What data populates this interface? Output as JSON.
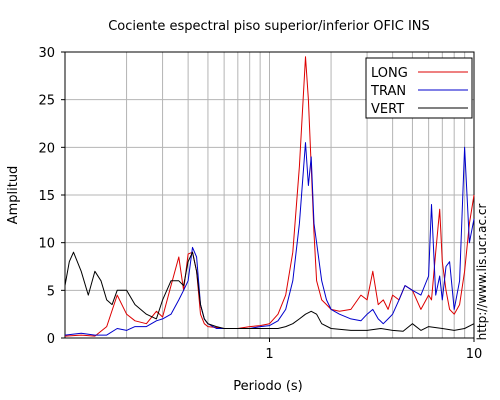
{
  "chart_data": {
    "type": "line",
    "title": "Cociente espectral piso superior/inferior  OFIC INS",
    "xlabel": "Periodo (s)",
    "ylabel": "Amplitud",
    "xscale": "log",
    "xlim": [
      0.1,
      10
    ],
    "ylim": [
      0,
      30
    ],
    "x_ticks": [
      1,
      10
    ],
    "x_tick_labels": [
      "1",
      "10"
    ],
    "y_ticks": [
      0,
      5,
      10,
      15,
      20,
      25,
      30
    ],
    "y_tick_labels": [
      "0",
      "5",
      "10",
      "15",
      "20",
      "25",
      "30"
    ],
    "grid": true,
    "legend_position": "top-right",
    "annotation": "http://www.lis.ucr.ac.cr",
    "series": [
      {
        "name": "LONG",
        "color": "#dd0000",
        "x": [
          0.1,
          0.12,
          0.14,
          0.16,
          0.18,
          0.2,
          0.22,
          0.25,
          0.28,
          0.3,
          0.33,
          0.36,
          0.38,
          0.4,
          0.42,
          0.44,
          0.46,
          0.48,
          0.5,
          0.55,
          0.6,
          0.7,
          0.8,
          0.9,
          1.0,
          1.1,
          1.2,
          1.3,
          1.4,
          1.5,
          1.55,
          1.6,
          1.65,
          1.7,
          1.8,
          1.9,
          2.0,
          2.2,
          2.5,
          2.8,
          3.0,
          3.2,
          3.4,
          3.6,
          3.8,
          4.0,
          4.3,
          4.6,
          5.0,
          5.5,
          6.0,
          6.2,
          6.5,
          6.8,
          7.0,
          7.3,
          7.6,
          8.0,
          8.5,
          9.0,
          9.5,
          10.0
        ],
        "values": [
          0.2,
          0.3,
          0.2,
          1.2,
          4.5,
          2.5,
          1.8,
          1.5,
          2.8,
          2.2,
          5.5,
          8.5,
          5.0,
          8.8,
          9.0,
          7.0,
          2.5,
          1.5,
          1.2,
          1.1,
          1.0,
          1.0,
          1.2,
          1.3,
          1.5,
          2.5,
          4.5,
          9.0,
          18.0,
          29.5,
          25.0,
          18.0,
          11.0,
          6.0,
          4.0,
          3.5,
          3.0,
          2.8,
          3.0,
          4.5,
          4.0,
          7.0,
          3.5,
          4.0,
          3.0,
          4.5,
          4.0,
          5.5,
          5.0,
          3.0,
          4.5,
          4.0,
          9.0,
          13.5,
          8.0,
          5.0,
          3.0,
          2.5,
          3.5,
          7.0,
          12.0,
          15.0
        ]
      },
      {
        "name": "TRAN",
        "color": "#0000cc",
        "x": [
          0.1,
          0.12,
          0.14,
          0.16,
          0.18,
          0.2,
          0.22,
          0.25,
          0.28,
          0.3,
          0.33,
          0.36,
          0.38,
          0.4,
          0.42,
          0.44,
          0.46,
          0.48,
          0.5,
          0.55,
          0.6,
          0.7,
          0.8,
          0.9,
          1.0,
          1.1,
          1.2,
          1.3,
          1.4,
          1.5,
          1.55,
          1.6,
          1.65,
          1.7,
          1.8,
          1.9,
          2.0,
          2.2,
          2.5,
          2.8,
          3.0,
          3.2,
          3.4,
          3.6,
          3.8,
          4.0,
          4.3,
          4.6,
          5.0,
          5.5,
          6.0,
          6.2,
          6.5,
          6.8,
          7.0,
          7.3,
          7.6,
          8.0,
          8.5,
          9.0,
          9.5,
          10.0
        ],
        "values": [
          0.3,
          0.5,
          0.3,
          0.3,
          1.0,
          0.8,
          1.2,
          1.2,
          1.8,
          2.0,
          2.5,
          4.0,
          5.0,
          6.0,
          9.5,
          8.5,
          3.5,
          2.0,
          1.5,
          1.0,
          1.0,
          1.0,
          1.0,
          1.2,
          1.3,
          1.8,
          3.0,
          6.0,
          12.0,
          20.5,
          16.0,
          19.0,
          12.0,
          10.0,
          6.0,
          4.0,
          3.0,
          2.5,
          2.0,
          1.8,
          2.5,
          3.0,
          2.0,
          1.5,
          2.0,
          2.5,
          4.0,
          5.5,
          5.0,
          4.5,
          6.5,
          14.0,
          4.5,
          6.5,
          4.0,
          7.5,
          8.0,
          3.0,
          6.0,
          20.0,
          10.0,
          12.5
        ]
      },
      {
        "name": "VERT",
        "color": "#000000",
        "x": [
          0.1,
          0.105,
          0.11,
          0.12,
          0.13,
          0.14,
          0.15,
          0.16,
          0.17,
          0.18,
          0.2,
          0.22,
          0.25,
          0.28,
          0.3,
          0.33,
          0.36,
          0.38,
          0.4,
          0.42,
          0.44,
          0.46,
          0.48,
          0.5,
          0.55,
          0.6,
          0.7,
          0.8,
          0.9,
          1.0,
          1.1,
          1.2,
          1.3,
          1.4,
          1.5,
          1.6,
          1.7,
          1.8,
          2.0,
          2.5,
          3.0,
          3.5,
          4.0,
          4.5,
          5.0,
          5.5,
          6.0,
          7.0,
          8.0,
          9.0,
          10.0
        ],
        "values": [
          5.5,
          8.0,
          9.0,
          7.0,
          4.5,
          7.0,
          6.0,
          4.0,
          3.5,
          5.0,
          5.0,
          3.5,
          2.5,
          2.0,
          4.0,
          6.0,
          6.0,
          5.5,
          8.0,
          9.0,
          7.0,
          3.5,
          2.0,
          1.5,
          1.2,
          1.0,
          1.0,
          1.0,
          1.0,
          1.0,
          1.0,
          1.2,
          1.5,
          2.0,
          2.5,
          2.8,
          2.5,
          1.5,
          1.0,
          0.8,
          0.8,
          1.0,
          0.8,
          0.7,
          1.5,
          0.8,
          1.2,
          1.0,
          0.8,
          1.0,
          1.5
        ]
      }
    ]
  }
}
